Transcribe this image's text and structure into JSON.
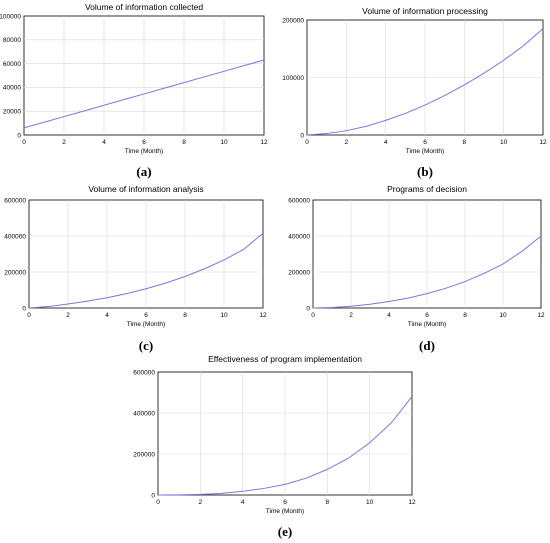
{
  "chart_data": [
    {
      "type": "line",
      "panel_label": "(a)",
      "title": "Volume of information collected",
      "xlabel": "Time (Month)",
      "ylabel": "",
      "xlim": [
        0,
        12
      ],
      "ylim": [
        0,
        100000
      ],
      "xticks": [
        0,
        2,
        4,
        6,
        8,
        10,
        12
      ],
      "yticks": [
        0,
        20000,
        40000,
        60000,
        80000,
        100000
      ],
      "grid": true,
      "series": [
        {
          "x": [
            0,
            1,
            2,
            3,
            4,
            5,
            6,
            7,
            8,
            9,
            10,
            11,
            12
          ],
          "y": [
            6000,
            10700,
            15500,
            20200,
            25000,
            29800,
            34500,
            39300,
            44000,
            48800,
            53500,
            58300,
            63000
          ]
        }
      ]
    },
    {
      "type": "line",
      "panel_label": "(b)",
      "title": "Volume of information processing",
      "xlabel": "Time (Month)",
      "ylabel": "",
      "xlim": [
        0,
        12
      ],
      "ylim": [
        0,
        200000
      ],
      "xticks": [
        0,
        2,
        4,
        6,
        8,
        10,
        12
      ],
      "yticks": [
        0,
        100000,
        200000
      ],
      "grid": true,
      "series": [
        {
          "x": [
            0,
            1,
            2,
            3,
            4,
            5,
            6,
            7,
            8,
            9,
            10,
            11,
            12
          ],
          "y": [
            0,
            2500,
            7500,
            15000,
            25500,
            37500,
            52000,
            68500,
            87000,
            107500,
            130000,
            155000,
            185000
          ]
        }
      ]
    },
    {
      "type": "line",
      "panel_label": "(c)",
      "title": "Volume of information analysis",
      "xlabel": "Time (Month)",
      "ylabel": "",
      "xlim": [
        0,
        12
      ],
      "ylim": [
        0,
        600000
      ],
      "xticks": [
        0,
        2,
        4,
        6,
        8,
        10,
        12
      ],
      "yticks": [
        0,
        200000,
        400000,
        600000
      ],
      "grid": true,
      "series": [
        {
          "x": [
            0,
            1,
            2,
            3,
            4,
            5,
            6,
            7,
            8,
            9,
            10,
            11,
            12
          ],
          "y": [
            0,
            8000,
            22000,
            38000,
            57000,
            80000,
            107000,
            138000,
            175000,
            218000,
            267000,
            325000,
            415000
          ]
        }
      ]
    },
    {
      "type": "line",
      "panel_label": "(d)",
      "title": "Programs of decision",
      "xlabel": "Time (Month)",
      "ylabel": "",
      "xlim": [
        0,
        12
      ],
      "ylim": [
        0,
        600000
      ],
      "xticks": [
        0,
        2,
        4,
        6,
        8,
        10,
        12
      ],
      "yticks": [
        0,
        200000,
        400000,
        600000
      ],
      "grid": true,
      "series": [
        {
          "x": [
            0,
            1,
            2,
            3,
            4,
            5,
            6,
            7,
            8,
            9,
            10,
            11,
            12
          ],
          "y": [
            0,
            3000,
            10000,
            21000,
            36000,
            55000,
            80000,
            110000,
            147000,
            192000,
            245000,
            315000,
            400000
          ]
        }
      ]
    },
    {
      "type": "line",
      "panel_label": "(e)",
      "title": "Effectiveness of program implementation",
      "xlabel": "Time (Month)",
      "ylabel": "",
      "xlim": [
        0,
        12
      ],
      "ylim": [
        0,
        600000
      ],
      "xticks": [
        0,
        2,
        4,
        6,
        8,
        10,
        12
      ],
      "yticks": [
        0,
        200000,
        400000,
        600000
      ],
      "grid": true,
      "series": [
        {
          "x": [
            0,
            1,
            2,
            3,
            4,
            5,
            6,
            7,
            8,
            9,
            10,
            11,
            12
          ],
          "y": [
            0,
            500,
            3000,
            8000,
            18000,
            32000,
            52000,
            82000,
            125000,
            180000,
            255000,
            350000,
            480000
          ]
        }
      ]
    }
  ]
}
